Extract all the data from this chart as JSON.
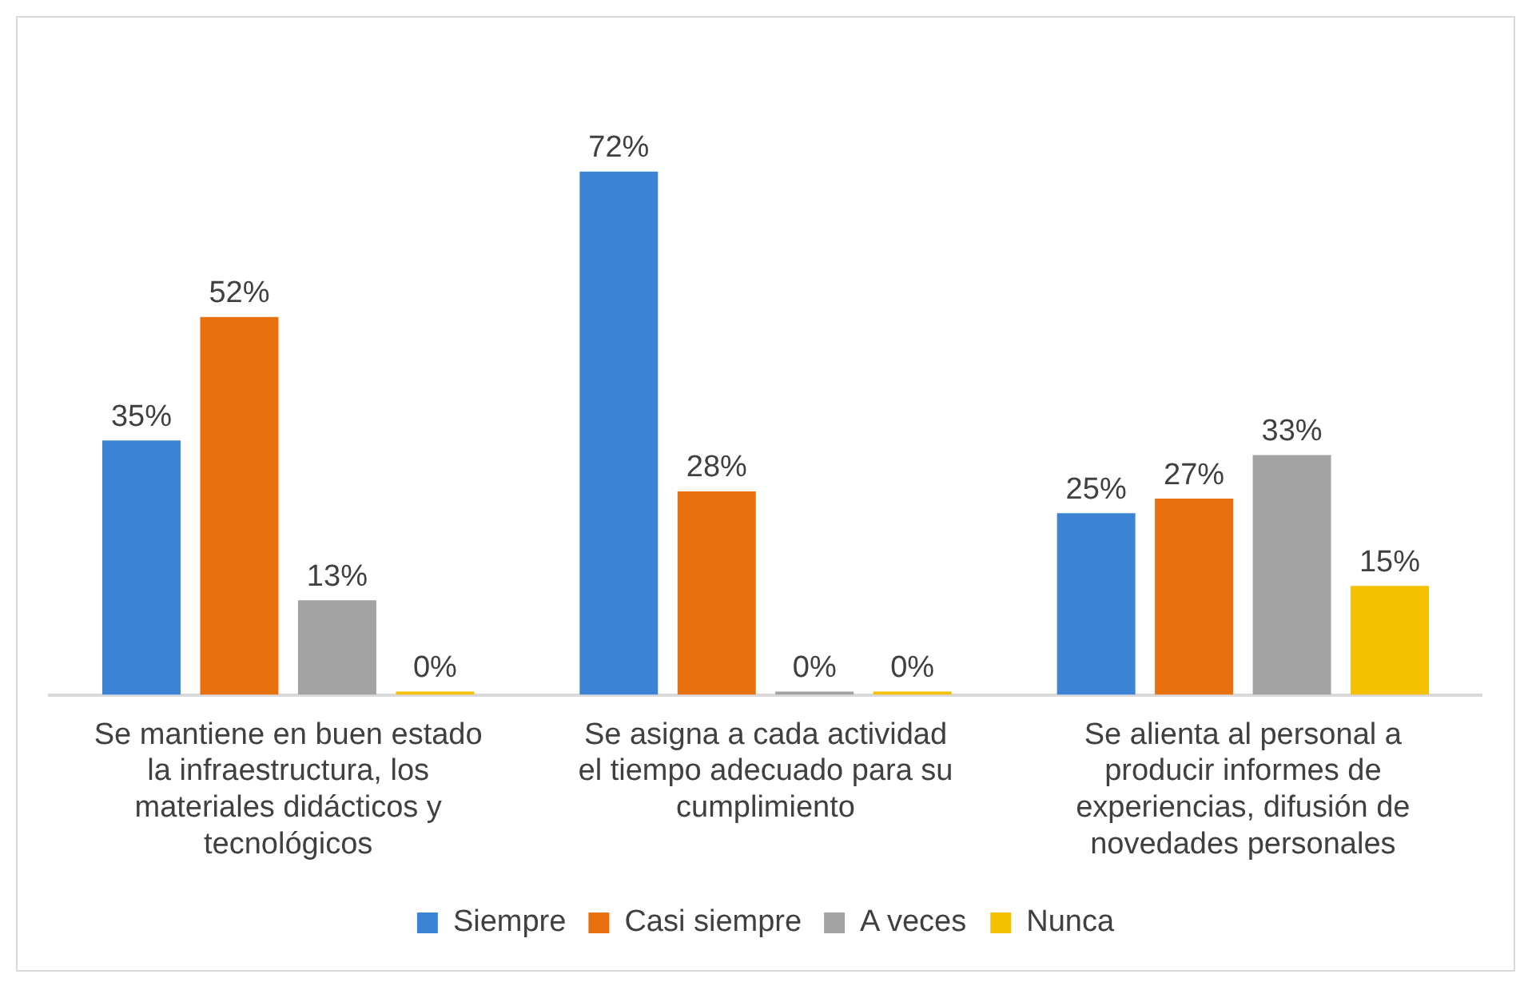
{
  "chart_data": {
    "type": "bar",
    "categories": [
      "Se mantiene en buen estado la infraestructura, los materiales didácticos y tecnológicos",
      "Se asigna a cada actividad el tiempo adecuado para su cumplimiento",
      "Se alienta al personal a producir informes de experiencias, difusión de novedades personales"
    ],
    "series": [
      {
        "name": "Siempre",
        "color": "#3b83d4",
        "values": [
          35,
          72,
          25
        ],
        "value_labels": [
          "35%",
          "72%",
          "25%"
        ]
      },
      {
        "name": "Casi siempre",
        "color": "#e8700f",
        "values": [
          52,
          28,
          27
        ],
        "value_labels": [
          "52%",
          "28%",
          "27%"
        ]
      },
      {
        "name": "A veces",
        "color": "#a3a3a3",
        "values": [
          13,
          0,
          33
        ],
        "value_labels": [
          "13%",
          "0%",
          "33%"
        ]
      },
      {
        "name": "Nunca",
        "color": "#f5c000",
        "values": [
          0,
          0,
          15
        ],
        "value_labels": [
          "0%",
          "0%",
          "15%"
        ]
      }
    ],
    "legend": "bottom",
    "grid": false
  }
}
